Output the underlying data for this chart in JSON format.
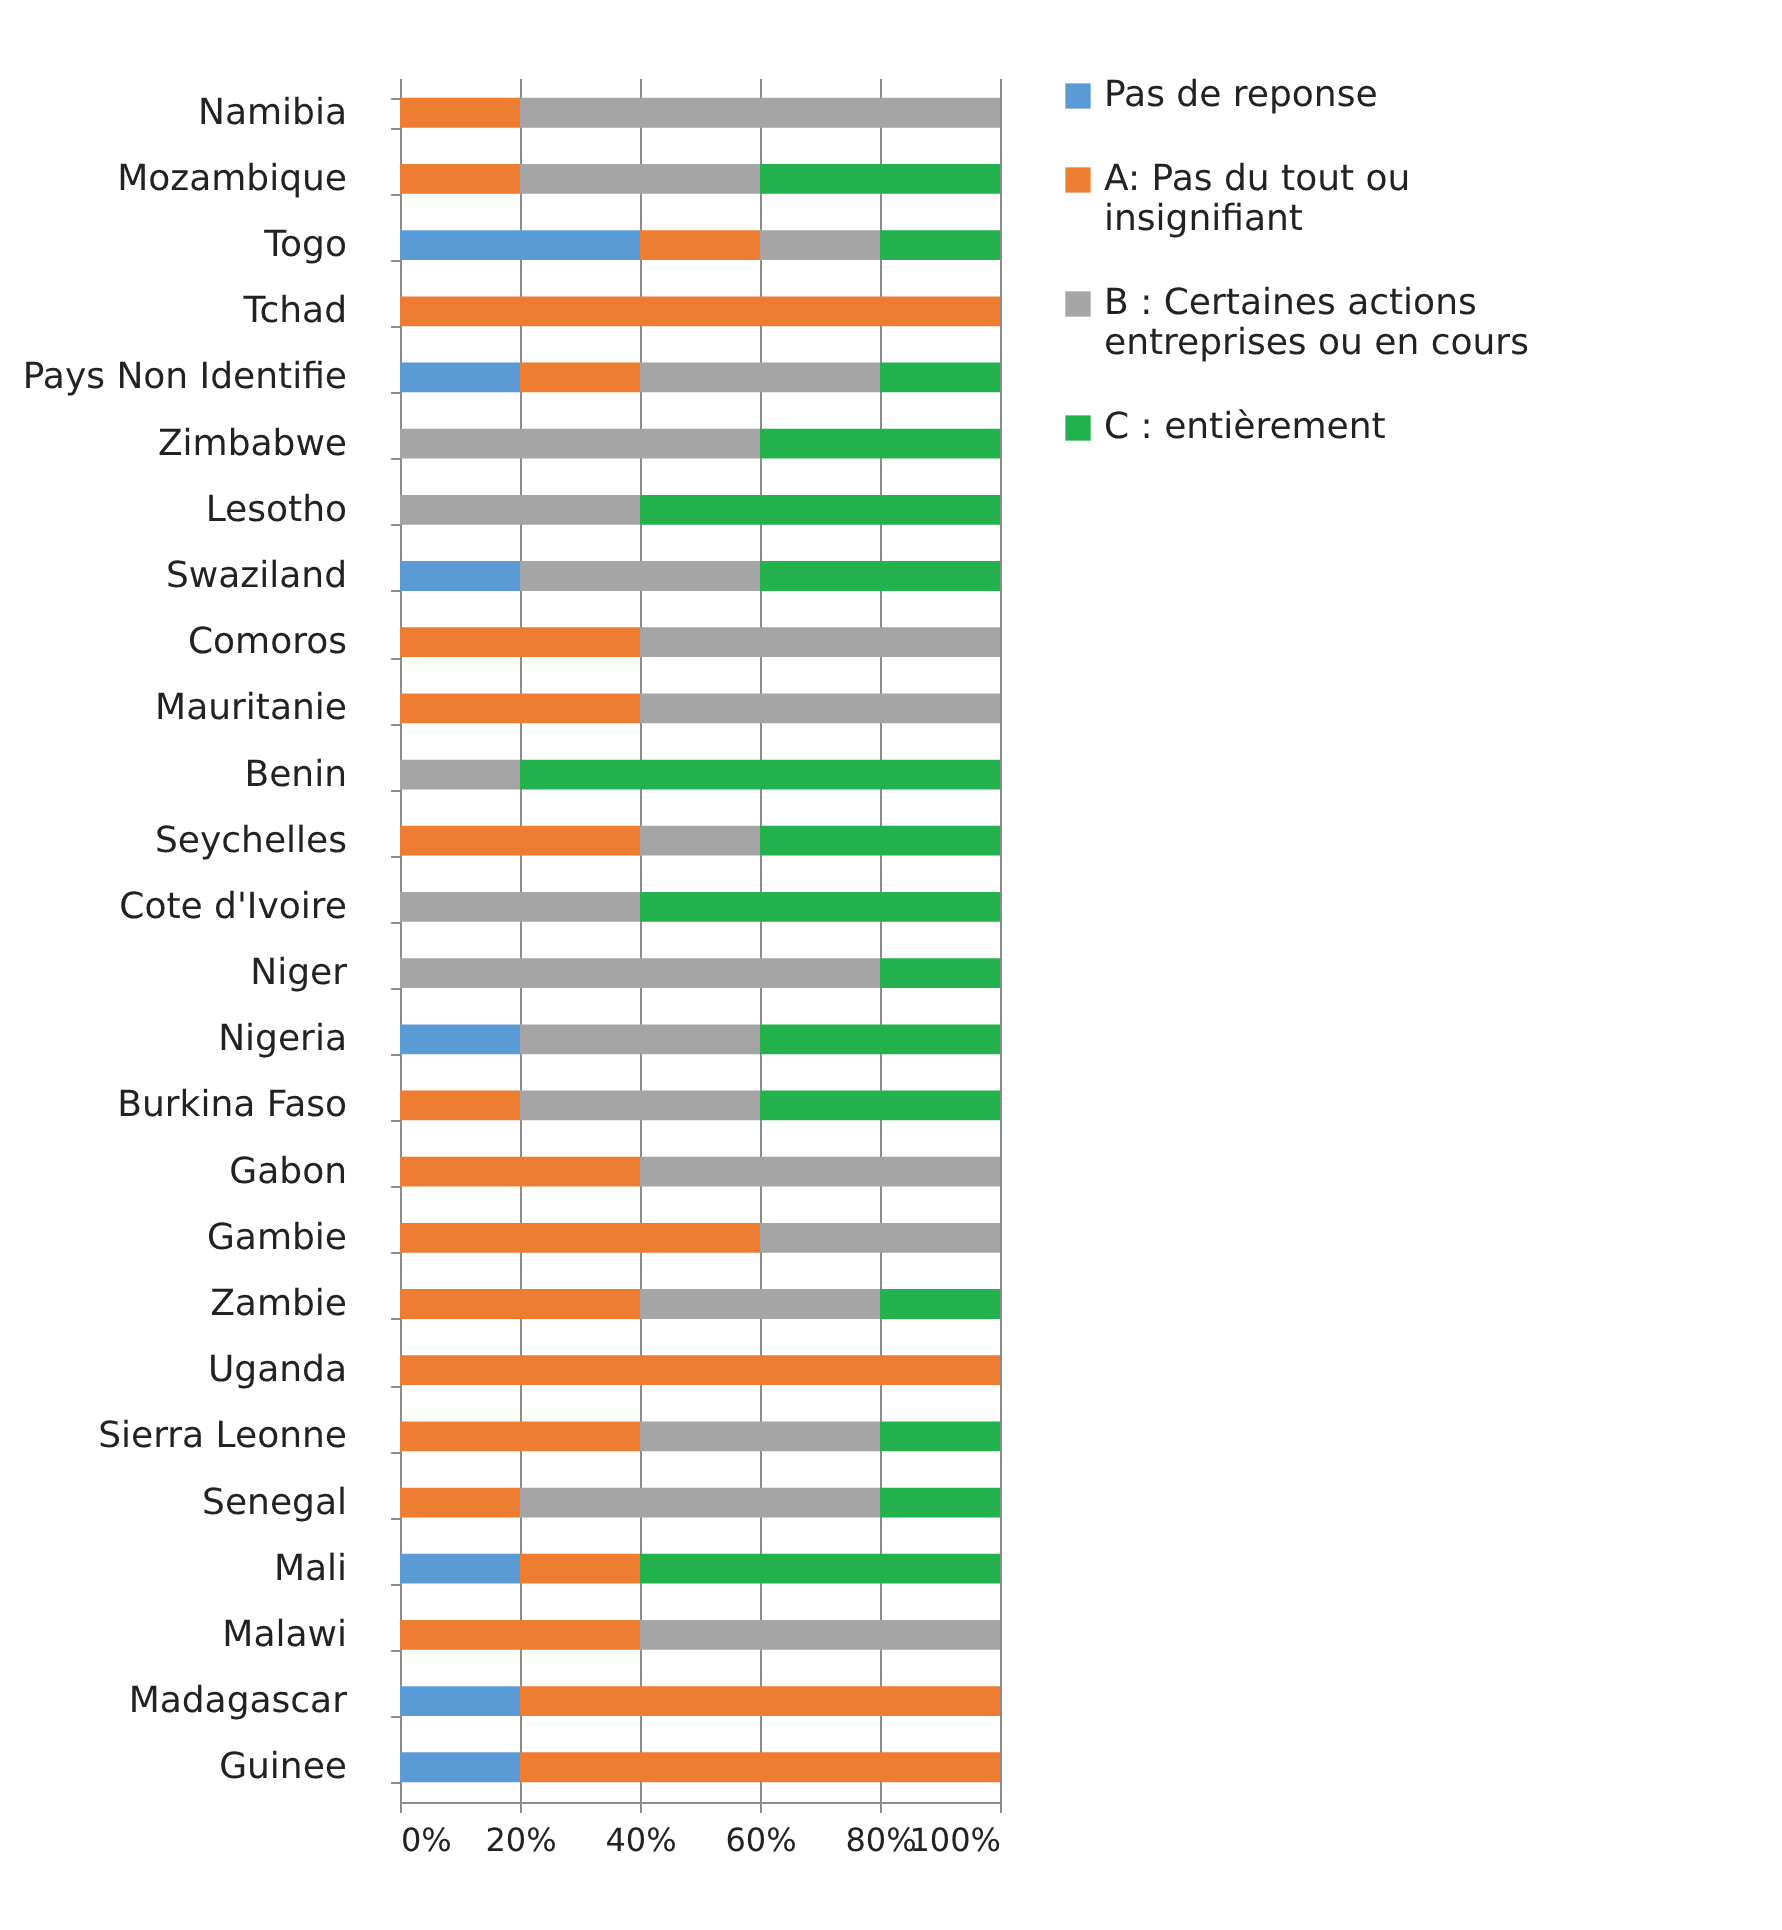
{
  "chart_data": {
    "type": "bar",
    "orientation": "horizontal",
    "stacked": true,
    "categories": [
      "Namibia",
      "Mozambique",
      "Togo",
      "Tchad",
      "Pays Non Identifie",
      "Zimbabwe",
      "Lesotho",
      "Swaziland",
      "Comoros",
      "Mauritanie",
      "Benin",
      "Seychelles",
      "Cote d'Ivoire",
      "Niger",
      "Nigeria",
      "Burkina Faso",
      "Gabon",
      "Gambie",
      "Zambie",
      "Uganda",
      "Sierra Leonne",
      "Senegal",
      "Mali",
      "Malawi",
      "Madagascar",
      "Guinee"
    ],
    "series": [
      {
        "name": "Pas de reponse",
        "color": "#5b9bd5",
        "values": [
          0,
          0,
          40,
          0,
          20,
          0,
          0,
          20,
          0,
          0,
          0,
          0,
          0,
          0,
          20,
          0,
          0,
          0,
          0,
          0,
          0,
          0,
          20,
          0,
          20,
          20
        ]
      },
      {
        "name": "A: Pas du tout ou insignifiant",
        "color": "#ed7d31",
        "values": [
          20,
          20,
          20,
          100,
          20,
          0,
          0,
          0,
          40,
          40,
          0,
          40,
          0,
          0,
          0,
          20,
          40,
          60,
          40,
          100,
          40,
          20,
          20,
          40,
          80,
          80
        ]
      },
      {
        "name": "B : Certaines actions entreprises ou en cours",
        "color": "#a5a5a5",
        "values": [
          80,
          40,
          20,
          0,
          40,
          60,
          40,
          40,
          60,
          60,
          20,
          20,
          40,
          80,
          40,
          40,
          60,
          40,
          40,
          0,
          40,
          60,
          0,
          60,
          0,
          0
        ]
      },
      {
        "name": "C : entièrement",
        "color": "#22b14c",
        "values": [
          0,
          40,
          20,
          0,
          20,
          40,
          60,
          40,
          0,
          0,
          80,
          40,
          60,
          20,
          40,
          40,
          0,
          0,
          20,
          0,
          20,
          20,
          60,
          0,
          0,
          0
        ]
      }
    ],
    "xlim": [
      0,
      100
    ],
    "xticks": [
      {
        "value": 0,
        "label": "0%"
      },
      {
        "value": 20,
        "label": "20%"
      },
      {
        "value": 40,
        "label": "40%"
      },
      {
        "value": 60,
        "label": "60%"
      },
      {
        "value": 80,
        "label": "80%"
      },
      {
        "value": 100,
        "label": "100%"
      }
    ],
    "grid": "x",
    "legend": "right"
  }
}
